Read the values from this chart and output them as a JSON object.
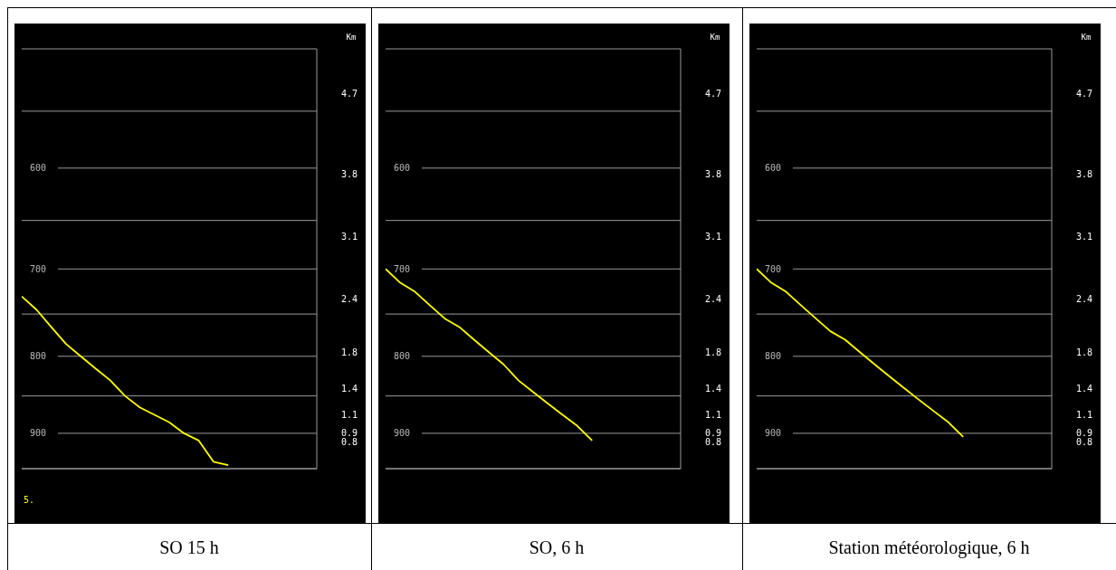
{
  "chart_data": [
    {
      "type": "line",
      "title": "SO 15 h",
      "y2label": "Km",
      "log": "y",
      "grid": "y",
      "ylim": [
        950,
        500
      ],
      "categories": [
        null,
        null,
        null,
        null,
        null,
        null,
        null,
        null,
        null,
        null,
        null,
        null,
        null,
        null,
        null,
        null,
        null,
        null,
        null,
        null,
        null
      ],
      "yticks": [
        {
          "value": 550,
          "label": null
        },
        600,
        {
          "value": 650,
          "label": null
        },
        700,
        {
          "value": 750,
          "label": null
        },
        800,
        {
          "value": 850,
          "label": null
        },
        900,
        {
          "value": 950,
          "label": null
        }
      ],
      "y2lim": [
        0.5,
        5.2
      ],
      "y2ticks": [
        4.7,
        3.8,
        3.1,
        2.4,
        1.8,
        1.4,
        1.1,
        0.9,
        0.8
      ],
      "annotations": [
        "5."
      ],
      "series": [
        {
          "color": "#ffff00",
          "values": [
            730,
            745,
            765,
            785,
            800,
            815,
            830,
            850,
            865,
            875,
            885,
            900,
            910,
            940,
            945,
            null,
            null,
            null,
            null,
            null,
            null
          ]
        }
      ]
    },
    {
      "type": "line",
      "title": "SO, 6 h",
      "y2label": "Km",
      "log": "y",
      "grid": "y",
      "ylim": [
        950,
        500
      ],
      "categories": [
        null,
        null,
        null,
        null,
        null,
        null,
        null,
        null,
        null,
        null,
        null,
        null,
        null,
        null,
        null,
        null,
        null,
        null,
        null,
        null,
        null
      ],
      "yticks": [
        {
          "value": 550,
          "label": null
        },
        600,
        {
          "value": 650,
          "label": null
        },
        700,
        {
          "value": 750,
          "label": null
        },
        800,
        {
          "value": 850,
          "label": null
        },
        900,
        {
          "value": 950,
          "label": null
        }
      ],
      "y2lim": [
        0.5,
        5.2
      ],
      "y2ticks": [
        4.7,
        3.8,
        3.1,
        2.4,
        1.8,
        1.4,
        1.1,
        0.9,
        0.8
      ],
      "series": [
        {
          "color": "#ffff00",
          "values": [
            700,
            715,
            725,
            740,
            755,
            765,
            780,
            795,
            810,
            830,
            845,
            860,
            875,
            890,
            910,
            null,
            null,
            null,
            null,
            null,
            null
          ]
        }
      ]
    },
    {
      "type": "line",
      "title": "Station météorologique, 6 h",
      "y2label": "Km",
      "log": "y",
      "grid": "y",
      "ylim": [
        950,
        500
      ],
      "categories": [
        null,
        null,
        null,
        null,
        null,
        null,
        null,
        null,
        null,
        null,
        null,
        null,
        null,
        null,
        null,
        null,
        null,
        null,
        null,
        null,
        null
      ],
      "yticks": [
        {
          "value": 550,
          "label": null
        },
        600,
        {
          "value": 650,
          "label": null
        },
        700,
        {
          "value": 750,
          "label": null
        },
        800,
        {
          "value": 850,
          "label": null
        },
        900,
        {
          "value": 950,
          "label": null
        }
      ],
      "y2lim": [
        0.5,
        5.2
      ],
      "y2ticks": [
        4.7,
        3.8,
        3.1,
        2.4,
        1.8,
        1.4,
        1.1,
        0.9,
        0.8
      ],
      "series": [
        {
          "color": "#ffff00",
          "values": [
            700,
            715,
            725,
            740,
            755,
            770,
            780,
            795,
            810,
            825,
            840,
            855,
            870,
            885,
            905,
            null,
            null,
            null,
            null,
            null,
            null
          ]
        }
      ]
    }
  ]
}
